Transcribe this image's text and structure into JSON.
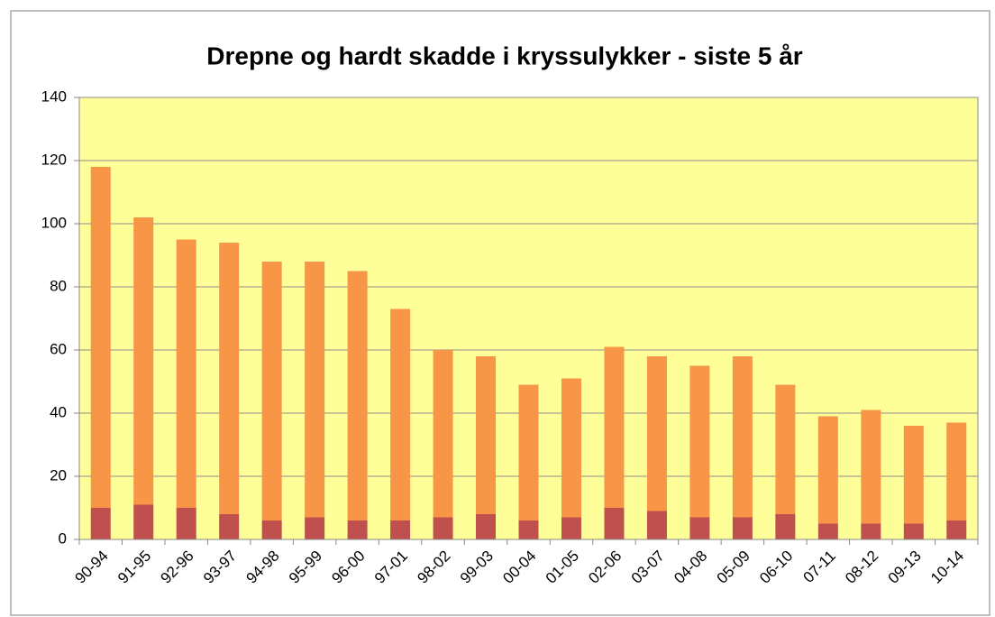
{
  "chart_data": {
    "type": "stacked_bar",
    "title": "Drepne og hardt skadde i kryssulykker - siste 5 år",
    "categories": [
      "90-94",
      "91-95",
      "92-96",
      "93-97",
      "94-98",
      "95-99",
      "96-00",
      "97-01",
      "98-02",
      "99-03",
      "00-04",
      "01-05",
      "02-06",
      "03-07",
      "04-08",
      "05-09",
      "06-10",
      "07-11",
      "08-12",
      "09-13",
      "10-14"
    ],
    "series": [
      {
        "color": "#c0504d",
        "values": [
          10,
          11,
          10,
          8,
          6,
          7,
          6,
          6,
          7,
          8,
          6,
          7,
          10,
          9,
          7,
          7,
          8,
          5,
          5,
          5,
          6
        ]
      },
      {
        "color": "#f79646",
        "values": [
          108,
          91,
          85,
          86,
          82,
          81,
          79,
          67,
          53,
          50,
          43,
          44,
          51,
          49,
          48,
          51,
          41,
          34,
          36,
          31,
          31
        ]
      }
    ],
    "ylim": [
      0,
      140
    ],
    "yticks": [
      0,
      20,
      40,
      60,
      80,
      100,
      120,
      140
    ],
    "grid": true,
    "plot_background": "#ffff99"
  }
}
